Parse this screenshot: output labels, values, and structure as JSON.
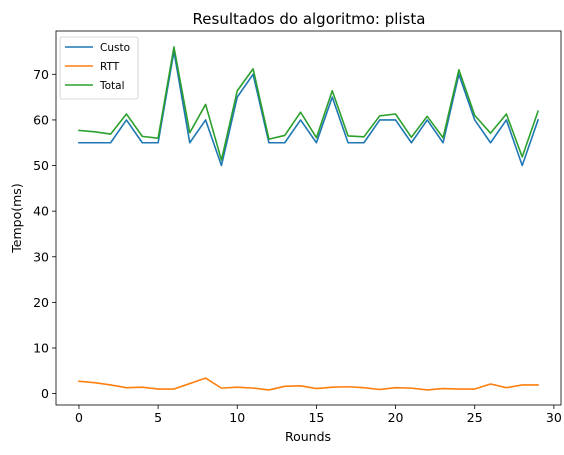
{
  "chart_data": {
    "type": "line",
    "title": "Resultados do algoritmo: plista",
    "xlabel": "Rounds",
    "ylabel": "Tempo(ms)",
    "xlim": [
      -1.45,
      30.45
    ],
    "ylim": [
      -2.5,
      79.5
    ],
    "xticks": [
      0,
      5,
      10,
      15,
      20,
      25,
      30
    ],
    "yticks": [
      0,
      10,
      20,
      30,
      40,
      50,
      60,
      70
    ],
    "x": [
      0,
      1,
      2,
      3,
      4,
      5,
      6,
      7,
      8,
      9,
      10,
      11,
      12,
      13,
      14,
      15,
      16,
      17,
      18,
      19,
      20,
      21,
      22,
      23,
      24,
      25,
      26,
      27,
      28,
      29
    ],
    "series": [
      {
        "name": "Custo",
        "color": "#1f77b4",
        "values": [
          55,
          55,
          55,
          60,
          55,
          55,
          75,
          55,
          60,
          50,
          65,
          70,
          55,
          55,
          60,
          55,
          65,
          55,
          55,
          60,
          60,
          55,
          60,
          55,
          70,
          60,
          55,
          60,
          50,
          60
        ]
      },
      {
        "name": "RTT",
        "color": "#ff7f0e",
        "values": [
          2.7,
          2.4,
          1.9,
          1.3,
          1.4,
          1.0,
          1.0,
          2.2,
          3.4,
          1.2,
          1.4,
          1.2,
          0.8,
          1.6,
          1.7,
          1.1,
          1.4,
          1.5,
          1.3,
          0.9,
          1.3,
          1.2,
          0.8,
          1.1,
          1.0,
          1.0,
          2.1,
          1.3,
          1.9,
          1.9
        ]
      },
      {
        "name": "Total",
        "color": "#2ca02c",
        "values": [
          57.7,
          57.4,
          56.9,
          61.3,
          56.4,
          56.0,
          76.0,
          57.2,
          63.4,
          51.2,
          66.4,
          71.2,
          55.8,
          56.6,
          61.7,
          56.1,
          66.4,
          56.5,
          56.3,
          60.9,
          61.3,
          56.2,
          60.8,
          56.1,
          71.0,
          61.0,
          57.1,
          61.3,
          51.9,
          61.9
        ]
      }
    ],
    "legend": {
      "position": "top-left",
      "entries": [
        "Custo",
        "RTT",
        "Total"
      ]
    },
    "grid": false
  }
}
